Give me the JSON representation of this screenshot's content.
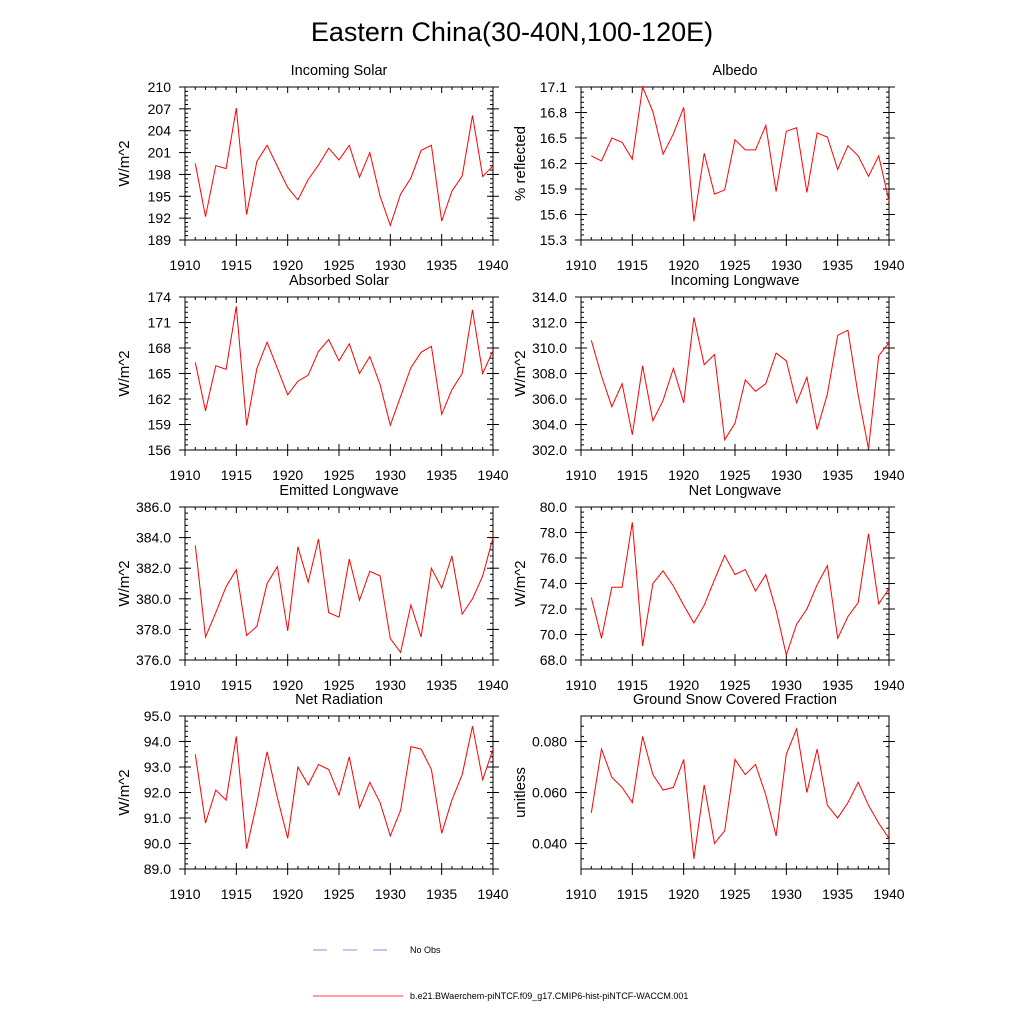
{
  "figure": {
    "title": "Eastern China(30-40N,100-120E)",
    "line_color": "#ff0000",
    "obs_color": "#6a6ad8"
  },
  "legend": {
    "obs_label": "No Obs",
    "model_label": "b.e21.BWaerchem-piNTCF.f09_g17.CMIP6-hist-piNTCF-WACCM.001"
  },
  "chart_data": [
    {
      "type": "line",
      "title": "Incoming Solar",
      "ylabel": "W/m^2",
      "xlim": [
        1910,
        1940
      ],
      "ylim": [
        189,
        210
      ],
      "xticks": [
        1910,
        1915,
        1920,
        1925,
        1930,
        1935,
        1940
      ],
      "yticks": [
        189,
        192,
        195,
        198,
        201,
        204,
        207,
        210
      ],
      "ytick_labels": [
        "189",
        "192",
        "195",
        "198",
        "201",
        "204",
        "207",
        "210"
      ],
      "x": [
        1911,
        1912,
        1913,
        1914,
        1915,
        1916,
        1917,
        1918,
        1919,
        1920,
        1921,
        1922,
        1923,
        1924,
        1925,
        1926,
        1927,
        1928,
        1929,
        1930,
        1931,
        1932,
        1933,
        1934,
        1935,
        1936,
        1937,
        1938,
        1939,
        1940
      ],
      "series": [
        {
          "values": [
            199.5,
            192.2,
            199.2,
            198.8,
            207.1,
            192.5,
            199.8,
            202.0,
            199.1,
            196.2,
            194.5,
            197.3,
            199.3,
            201.6,
            200.0,
            202.0,
            197.6,
            201.0,
            195.0,
            191.0,
            195.3,
            197.5,
            201.3,
            202.0,
            191.6,
            195.7,
            197.8,
            206.1,
            197.7,
            199.2
          ]
        }
      ]
    },
    {
      "type": "line",
      "title": "Albedo",
      "ylabel": "% reflected",
      "xlim": [
        1910,
        1940
      ],
      "ylim": [
        15.3,
        17.1
      ],
      "xticks": [
        1910,
        1915,
        1920,
        1925,
        1930,
        1935,
        1940
      ],
      "yticks": [
        15.3,
        15.6,
        15.9,
        16.2,
        16.5,
        16.8,
        17.1
      ],
      "ytick_labels": [
        "15.3",
        "15.6",
        "15.9",
        "16.2",
        "16.5",
        "16.8",
        "17.1"
      ],
      "x": [
        1911,
        1912,
        1913,
        1914,
        1915,
        1916,
        1917,
        1918,
        1919,
        1920,
        1921,
        1922,
        1923,
        1924,
        1925,
        1926,
        1927,
        1928,
        1929,
        1930,
        1931,
        1932,
        1933,
        1934,
        1935,
        1936,
        1937,
        1938,
        1939,
        1940
      ],
      "series": [
        {
          "values": [
            16.29,
            16.23,
            16.5,
            16.45,
            16.25,
            17.1,
            16.81,
            16.31,
            16.55,
            16.86,
            15.52,
            16.32,
            15.84,
            15.89,
            16.48,
            16.36,
            16.36,
            16.65,
            15.87,
            16.58,
            16.62,
            15.86,
            16.56,
            16.51,
            16.13,
            16.41,
            16.29,
            16.05,
            16.29,
            15.76
          ]
        }
      ]
    },
    {
      "type": "line",
      "title": "Absorbed Solar",
      "ylabel": "W/m^2",
      "xlim": [
        1910,
        1940
      ],
      "ylim": [
        156,
        174
      ],
      "xticks": [
        1910,
        1915,
        1920,
        1925,
        1930,
        1935,
        1940
      ],
      "yticks": [
        156,
        159,
        162,
        165,
        168,
        171,
        174
      ],
      "ytick_labels": [
        "156",
        "159",
        "162",
        "165",
        "168",
        "171",
        "174"
      ],
      "x": [
        1911,
        1912,
        1913,
        1914,
        1915,
        1916,
        1917,
        1918,
        1919,
        1920,
        1921,
        1922,
        1923,
        1924,
        1925,
        1926,
        1927,
        1928,
        1929,
        1930,
        1931,
        1932,
        1933,
        1934,
        1935,
        1936,
        1937,
        1938,
        1939,
        1940
      ],
      "series": [
        {
          "values": [
            166.3,
            160.6,
            165.9,
            165.5,
            172.9,
            158.9,
            165.6,
            168.7,
            165.6,
            162.5,
            164.1,
            164.8,
            167.6,
            169.0,
            166.5,
            168.5,
            165.0,
            167.0,
            163.7,
            158.9,
            162.3,
            165.7,
            167.5,
            168.2,
            160.2,
            163.1,
            165.0,
            172.5,
            165.0,
            167.7
          ]
        }
      ]
    },
    {
      "type": "line",
      "title": "Incoming Longwave",
      "ylabel": "W/m^2",
      "xlim": [
        1910,
        1940
      ],
      "ylim": [
        302.0,
        314.0
      ],
      "xticks": [
        1910,
        1915,
        1920,
        1925,
        1930,
        1935,
        1940
      ],
      "yticks": [
        302.0,
        304.0,
        306.0,
        308.0,
        310.0,
        312.0,
        314.0
      ],
      "ytick_labels": [
        "302.0",
        "304.0",
        "306.0",
        "308.0",
        "310.0",
        "312.0",
        "314.0"
      ],
      "x": [
        1911,
        1912,
        1913,
        1914,
        1915,
        1916,
        1917,
        1918,
        1919,
        1920,
        1921,
        1922,
        1923,
        1924,
        1925,
        1926,
        1927,
        1928,
        1929,
        1930,
        1931,
        1932,
        1933,
        1934,
        1935,
        1936,
        1937,
        1938,
        1939,
        1940
      ],
      "series": [
        {
          "values": [
            310.6,
            307.8,
            305.4,
            307.2,
            303.2,
            308.6,
            304.3,
            305.9,
            308.4,
            305.7,
            312.4,
            308.7,
            309.5,
            302.8,
            304.1,
            307.5,
            306.6,
            307.2,
            309.6,
            309.0,
            305.7,
            307.7,
            303.6,
            306.4,
            311.0,
            311.4,
            306.3,
            302.1,
            309.4,
            310.4
          ]
        }
      ]
    },
    {
      "type": "line",
      "title": "Emitted Longwave",
      "ylabel": "W/m^2",
      "xlim": [
        1910,
        1940
      ],
      "ylim": [
        376.0,
        386.0
      ],
      "xticks": [
        1910,
        1915,
        1920,
        1925,
        1930,
        1935,
        1940
      ],
      "yticks": [
        376.0,
        378.0,
        380.0,
        382.0,
        384.0,
        386.0
      ],
      "ytick_labels": [
        "376.0",
        "378.0",
        "380.0",
        "382.0",
        "384.0",
        "386.0"
      ],
      "x": [
        1911,
        1912,
        1913,
        1914,
        1915,
        1916,
        1917,
        1918,
        1919,
        1920,
        1921,
        1922,
        1923,
        1924,
        1925,
        1926,
        1927,
        1928,
        1929,
        1930,
        1931,
        1932,
        1933,
        1934,
        1935,
        1936,
        1937,
        1938,
        1939,
        1940
      ],
      "series": [
        {
          "values": [
            383.5,
            377.5,
            379.1,
            380.8,
            381.9,
            377.6,
            378.2,
            381.0,
            382.1,
            377.9,
            383.4,
            381.1,
            383.9,
            379.1,
            378.8,
            382.6,
            379.9,
            381.8,
            381.5,
            377.4,
            376.5,
            379.6,
            377.5,
            382.0,
            380.7,
            382.8,
            379.0,
            380.0,
            381.5,
            384.0
          ]
        }
      ]
    },
    {
      "type": "line",
      "title": "Net Longwave",
      "ylabel": "W/m^2",
      "xlim": [
        1910,
        1940
      ],
      "ylim": [
        68.0,
        80.0
      ],
      "xticks": [
        1910,
        1915,
        1920,
        1925,
        1930,
        1935,
        1940
      ],
      "yticks": [
        68.0,
        70.0,
        72.0,
        74.0,
        76.0,
        78.0,
        80.0
      ],
      "ytick_labels": [
        "68.0",
        "70.0",
        "72.0",
        "74.0",
        "76.0",
        "78.0",
        "80.0"
      ],
      "x": [
        1911,
        1912,
        1913,
        1914,
        1915,
        1916,
        1917,
        1918,
        1919,
        1920,
        1921,
        1922,
        1923,
        1924,
        1925,
        1926,
        1927,
        1928,
        1929,
        1930,
        1931,
        1932,
        1933,
        1934,
        1935,
        1936,
        1937,
        1938,
        1939,
        1940
      ],
      "series": [
        {
          "values": [
            72.9,
            69.7,
            73.7,
            73.7,
            78.8,
            69.1,
            74.0,
            75.0,
            73.8,
            72.3,
            70.9,
            72.3,
            74.3,
            76.2,
            74.7,
            75.1,
            73.4,
            74.7,
            71.9,
            68.4,
            70.8,
            72.0,
            73.9,
            75.4,
            69.7,
            71.4,
            72.5,
            77.9,
            72.4,
            73.6
          ]
        }
      ]
    },
    {
      "type": "line",
      "title": "Net Radiation",
      "ylabel": "W/m^2",
      "xlim": [
        1910,
        1940
      ],
      "ylim": [
        89.0,
        95.0
      ],
      "xticks": [
        1910,
        1915,
        1920,
        1925,
        1930,
        1935,
        1940
      ],
      "yticks": [
        89.0,
        90.0,
        91.0,
        92.0,
        93.0,
        94.0,
        95.0
      ],
      "ytick_labels": [
        "89.0",
        "90.0",
        "91.0",
        "92.0",
        "93.0",
        "94.0",
        "95.0"
      ],
      "x": [
        1911,
        1912,
        1913,
        1914,
        1915,
        1916,
        1917,
        1918,
        1919,
        1920,
        1921,
        1922,
        1923,
        1924,
        1925,
        1926,
        1927,
        1928,
        1929,
        1930,
        1931,
        1932,
        1933,
        1934,
        1935,
        1936,
        1937,
        1938,
        1939,
        1940
      ],
      "series": [
        {
          "values": [
            93.5,
            90.8,
            92.1,
            91.7,
            94.2,
            89.8,
            91.6,
            93.6,
            91.8,
            90.2,
            93.0,
            92.3,
            93.1,
            92.9,
            91.9,
            93.4,
            91.4,
            92.4,
            91.6,
            90.3,
            91.3,
            93.8,
            93.7,
            92.9,
            90.4,
            91.7,
            92.7,
            94.6,
            92.5,
            93.7
          ]
        }
      ]
    },
    {
      "type": "line",
      "title": "Ground Snow Covered Fraction",
      "ylabel": "unitless",
      "xlim": [
        1910,
        1940
      ],
      "ylim": [
        0.03,
        0.09
      ],
      "xticks": [
        1910,
        1915,
        1920,
        1925,
        1930,
        1935,
        1940
      ],
      "yticks": [
        0.04,
        0.06,
        0.08
      ],
      "ytick_labels": [
        "0.040",
        "0.060",
        "0.080"
      ],
      "x": [
        1911,
        1912,
        1913,
        1914,
        1915,
        1916,
        1917,
        1918,
        1919,
        1920,
        1921,
        1922,
        1923,
        1924,
        1925,
        1926,
        1927,
        1928,
        1929,
        1930,
        1931,
        1932,
        1933,
        1934,
        1935,
        1936,
        1937,
        1938,
        1939,
        1940
      ],
      "series": [
        {
          "values": [
            0.052,
            0.077,
            0.066,
            0.062,
            0.056,
            0.082,
            0.067,
            0.061,
            0.062,
            0.073,
            0.034,
            0.063,
            0.04,
            0.045,
            0.073,
            0.067,
            0.071,
            0.059,
            0.043,
            0.075,
            0.085,
            0.06,
            0.077,
            0.055,
            0.05,
            0.056,
            0.064,
            0.055,
            0.048,
            0.042
          ]
        }
      ]
    }
  ]
}
